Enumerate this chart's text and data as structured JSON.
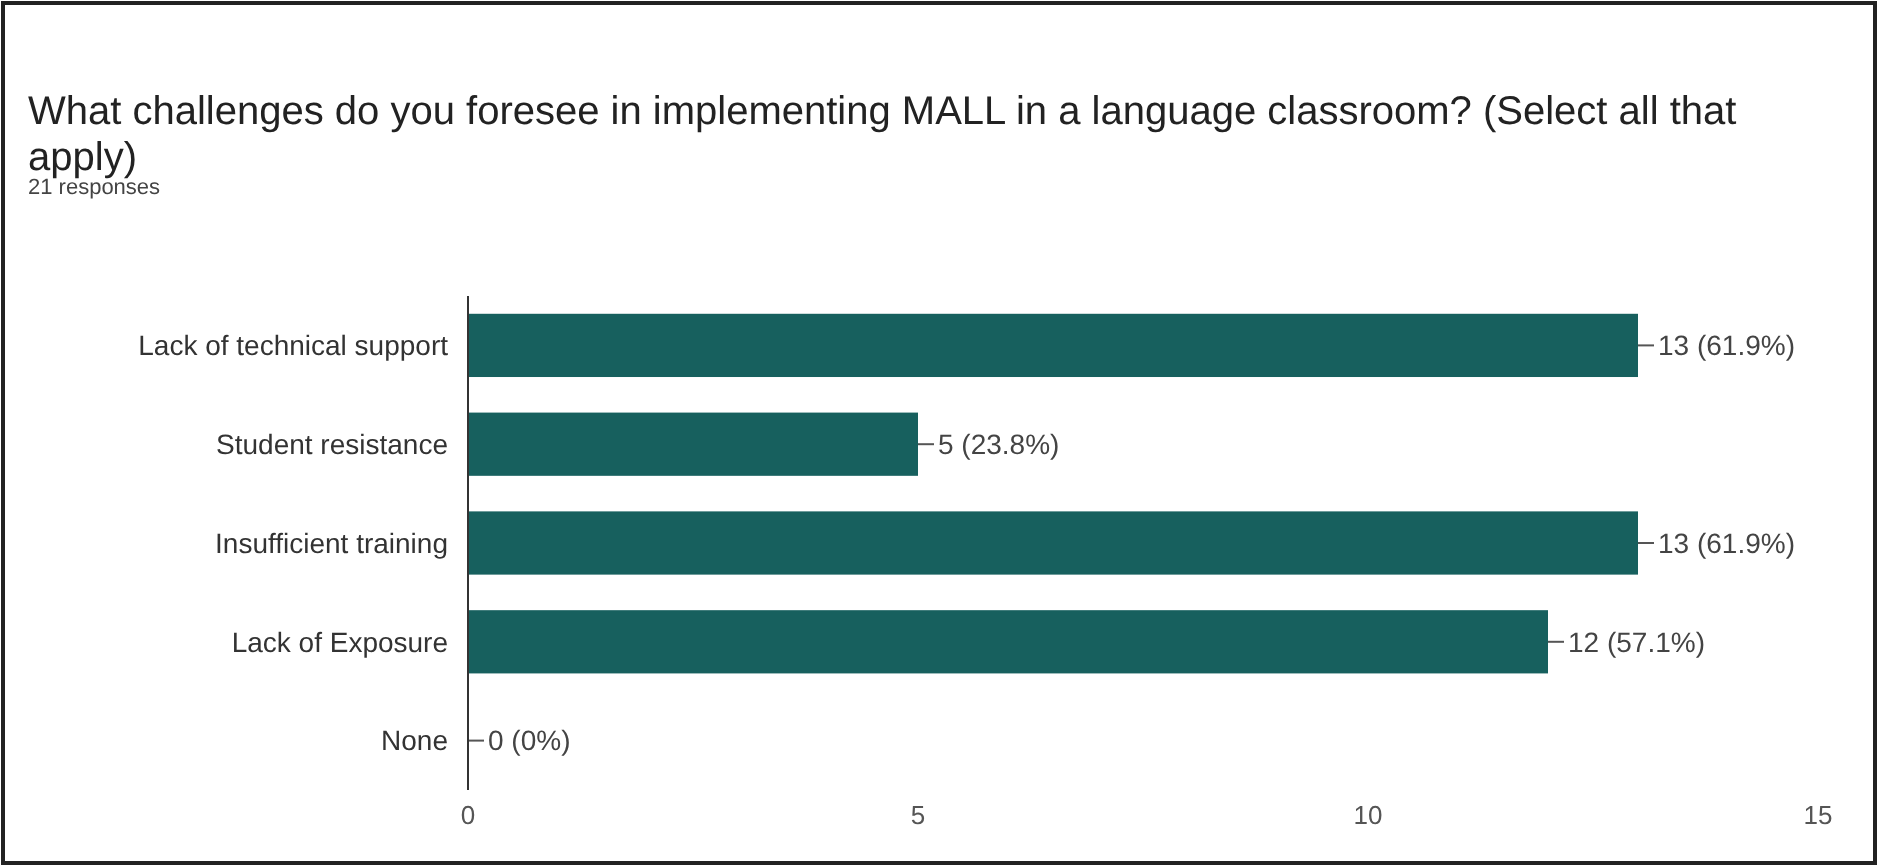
{
  "chart_data": {
    "type": "bar",
    "orientation": "horizontal",
    "title": "What challenges do you foresee in implementing MALL in a language classroom?  (Select all that apply)",
    "subtitle": "21 responses",
    "categories": [
      "Lack of technical support",
      "Student resistance",
      "Insufficient training",
      "Lack of Exposure",
      "None"
    ],
    "values": [
      13,
      5,
      13,
      12,
      0
    ],
    "value_labels": [
      "13 (61.9%)",
      "5 (23.8%)",
      "13 (61.9%)",
      "12 (57.1%)",
      "0 (0%)"
    ],
    "color": "#17605e",
    "xlim": [
      0,
      15
    ],
    "xticks": [
      0,
      5,
      10,
      15
    ],
    "grid": false
  }
}
